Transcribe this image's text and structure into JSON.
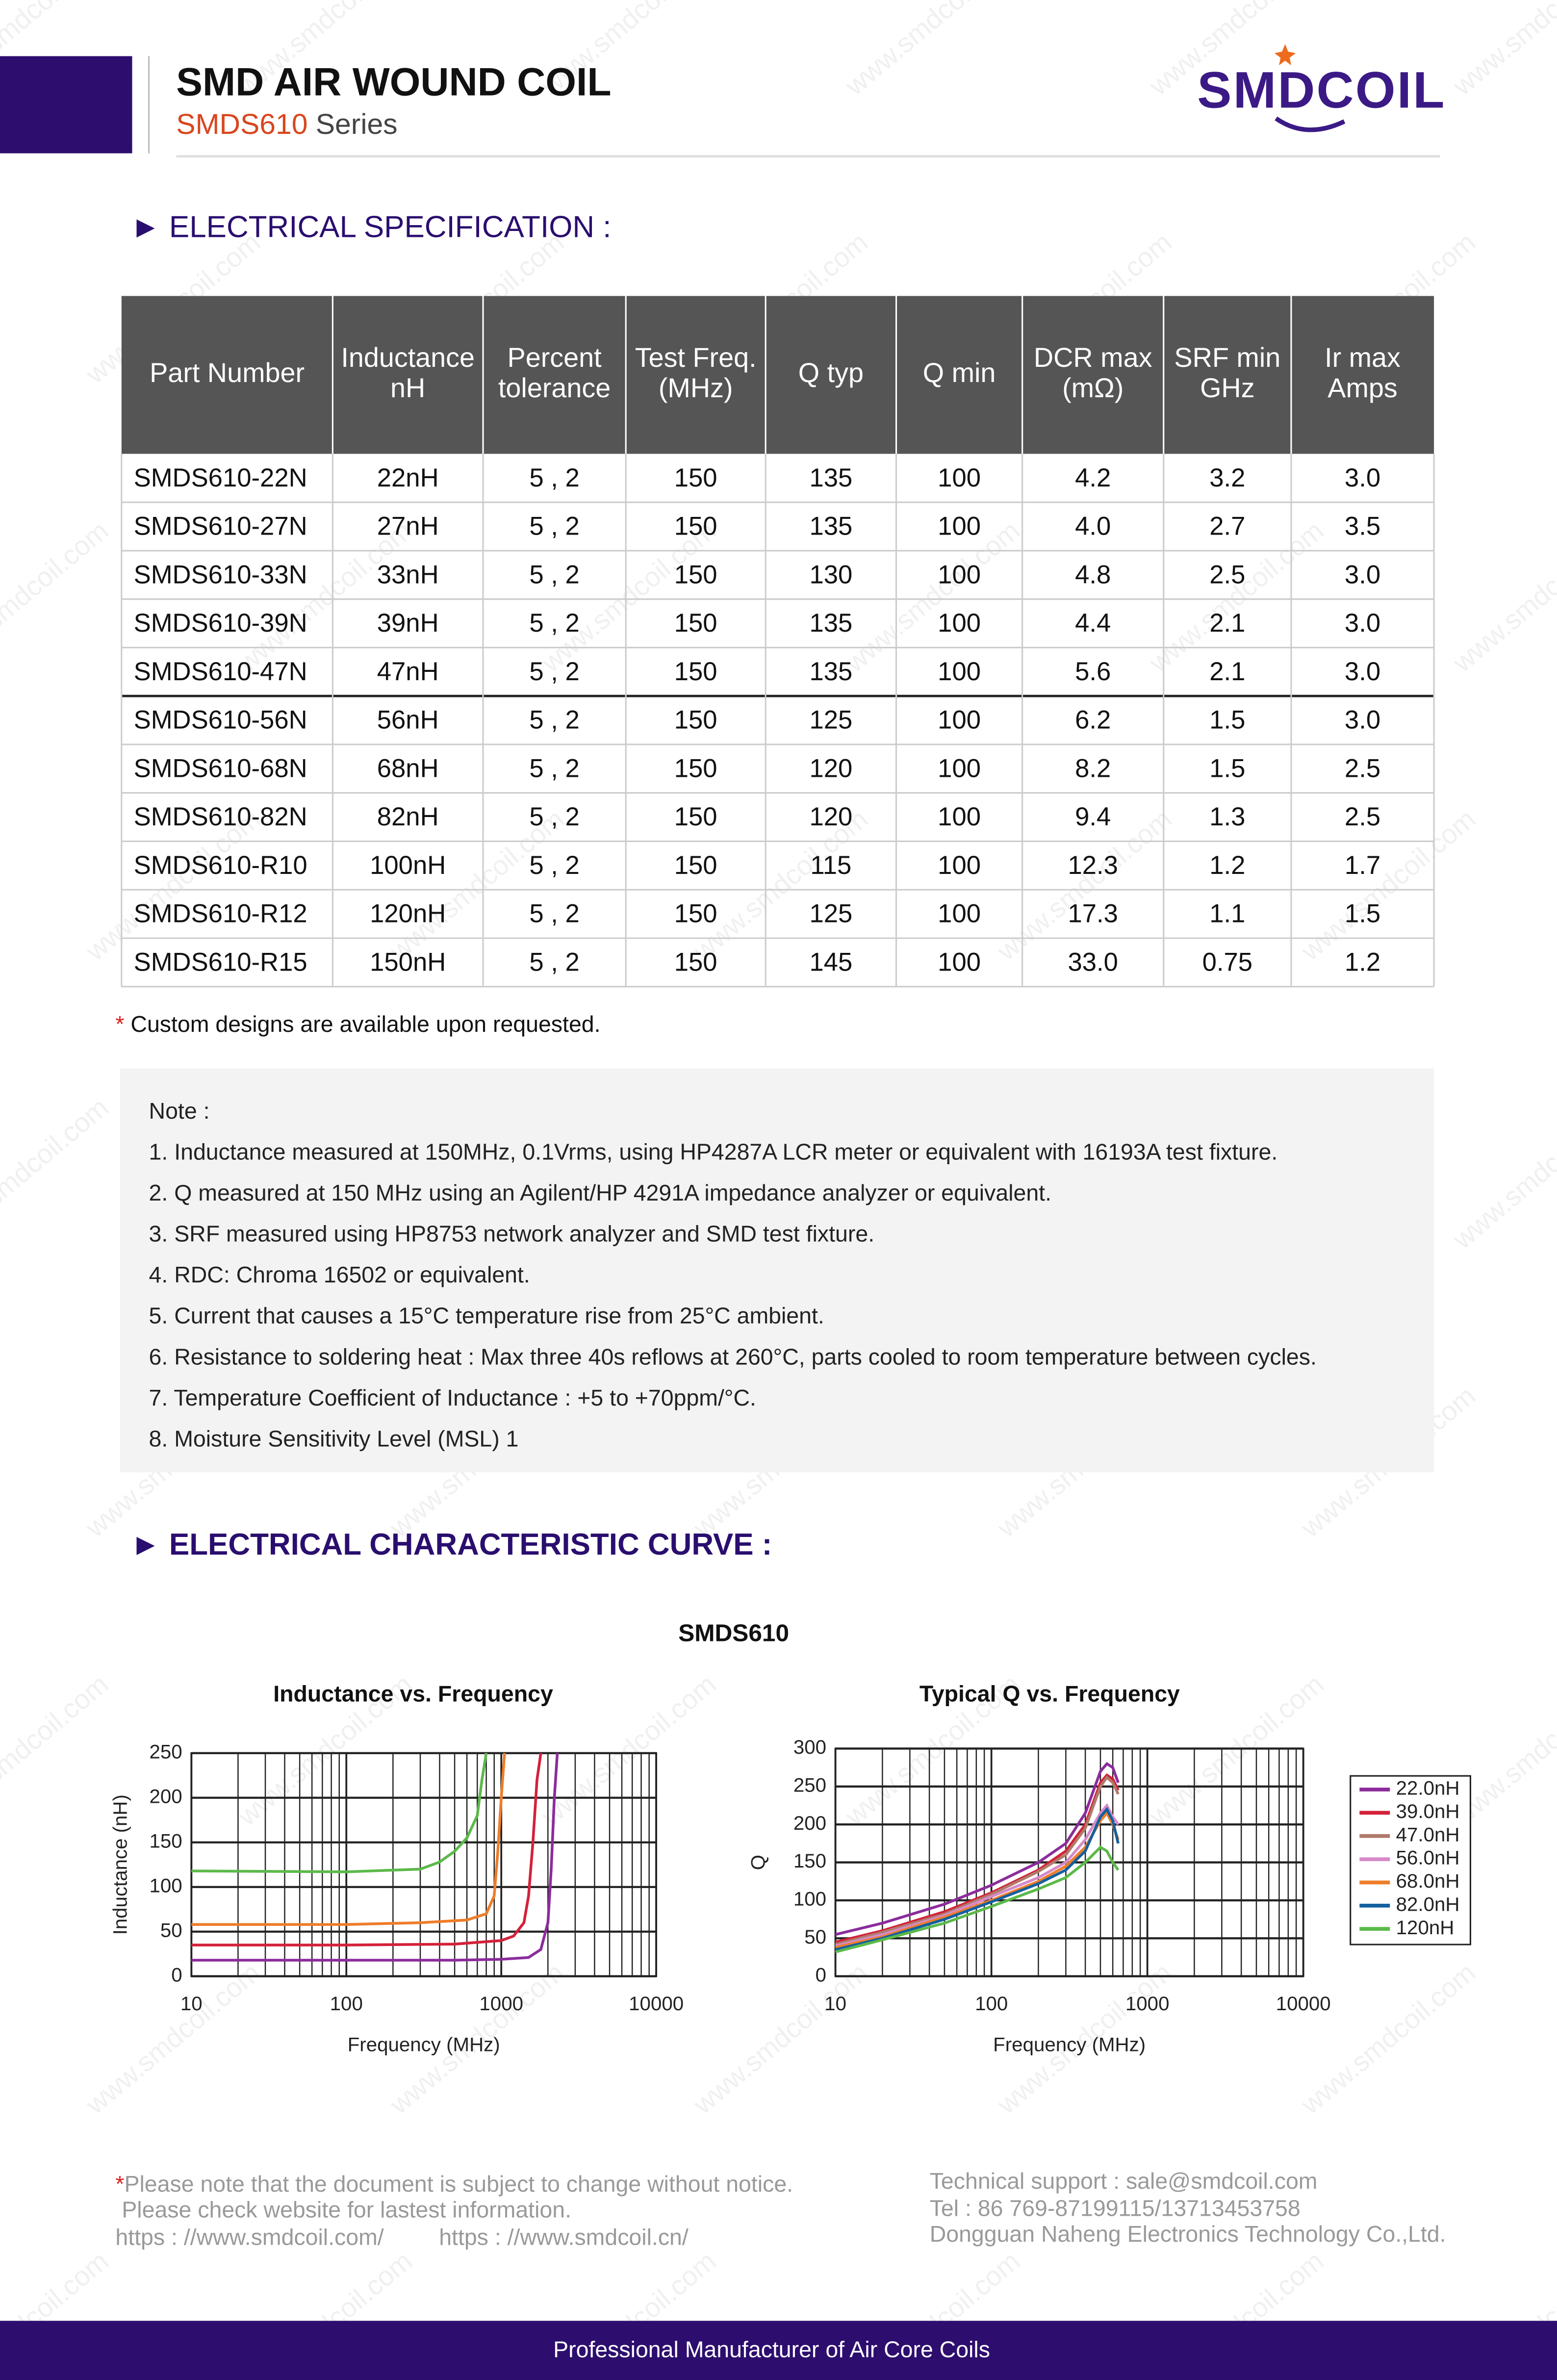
{
  "watermark": "www.smdcoil.com",
  "header": {
    "title": "SMD AIR WOUND COIL",
    "series_code": "SMDS610",
    "series_word": "Series",
    "logo": "SMDCOIL"
  },
  "spec_heading": "► ELECTRICAL SPECIFICATION :",
  "table": {
    "columns": [
      [
        "Part Number"
      ],
      [
        "Inductance",
        "nH"
      ],
      [
        "Percent",
        "tolerance"
      ],
      [
        "Test Freq.",
        "(MHz)"
      ],
      [
        "Q typ"
      ],
      [
        "Q min"
      ],
      [
        "DCR max",
        "(mΩ)"
      ],
      [
        "SRF min",
        "GHz"
      ],
      [
        "Ir max",
        "Amps"
      ]
    ],
    "rows": [
      [
        "SMDS610-22N",
        "22nH",
        "5 , 2",
        "150",
        "135",
        "100",
        "4.2",
        "3.2",
        "3.0"
      ],
      [
        "SMDS610-27N",
        "27nH",
        "5 , 2",
        "150",
        "135",
        "100",
        "4.0",
        "2.7",
        "3.5"
      ],
      [
        "SMDS610-33N",
        "33nH",
        "5 , 2",
        "150",
        "130",
        "100",
        "4.8",
        "2.5",
        "3.0"
      ],
      [
        "SMDS610-39N",
        "39nH",
        "5 , 2",
        "150",
        "135",
        "100",
        "4.4",
        "2.1",
        "3.0"
      ],
      [
        "SMDS610-47N",
        "47nH",
        "5 , 2",
        "150",
        "135",
        "100",
        "5.6",
        "2.1",
        "3.0"
      ],
      [
        "SMDS610-56N",
        "56nH",
        "5 , 2",
        "150",
        "125",
        "100",
        "6.2",
        "1.5",
        "3.0"
      ],
      [
        "SMDS610-68N",
        "68nH",
        "5 , 2",
        "150",
        "120",
        "100",
        "8.2",
        "1.5",
        "2.5"
      ],
      [
        "SMDS610-82N",
        "82nH",
        "5 , 2",
        "150",
        "120",
        "100",
        "9.4",
        "1.3",
        "2.5"
      ],
      [
        "SMDS610-R10",
        "100nH",
        "5 , 2",
        "150",
        "115",
        "100",
        "12.3",
        "1.2",
        "1.7"
      ],
      [
        "SMDS610-R12",
        "120nH",
        "5 , 2",
        "150",
        "125",
        "100",
        "17.3",
        "1.1",
        "1.5"
      ],
      [
        "SMDS610-R15",
        "150nH",
        "5 , 2",
        "150",
        "145",
        "100",
        "33.0",
        "0.75",
        "1.2"
      ]
    ]
  },
  "custom_note": {
    "mark": "*",
    "text": "Custom designs are available upon requested."
  },
  "notes": {
    "title": "Note :",
    "items": [
      "1. Inductance measured at 150MHz, 0.1Vrms,  using HP4287A LCR meter or equivalent with 16193A test fixture.",
      "2. Q measured at 150 MHz using an Agilent/HP 4291A impedance analyzer or equivalent.",
      "3. SRF measured using HP8753 network analyzer and SMD test fixture.",
      "4. RDC: Chroma 16502 or equivalent.",
      "5. Current that causes a 15°C temperature rise from 25°C ambient.",
      "6. Resistance to soldering heat : Max three 40s reflows at 260°C, parts cooled to room temperature between cycles.",
      "7. Temperature Coefficient of Inductance : +5 to +70ppm/°C.",
      "8. Moisture Sensitivity Level (MSL) 1"
    ]
  },
  "curve_heading": "► ELECTRICAL CHARACTERISTIC CURVE :",
  "curve_title": "SMDS610",
  "chart_data": [
    {
      "type": "line",
      "title": "Inductance vs. Frequency",
      "x_label": "Frequency (MHz)",
      "y_label": "Inductance (nH)",
      "x_scale": "log",
      "grid": true,
      "xlim": [
        10,
        10000
      ],
      "xticks": [
        10,
        100,
        1000,
        10000
      ],
      "ylim": [
        0,
        250
      ],
      "yticks": [
        0,
        50,
        100,
        150,
        200,
        250
      ],
      "series": [
        {
          "color": "#8b2c9c",
          "x": [
            10,
            100,
            500,
            1000,
            1500,
            1800,
            2000,
            2100,
            2200,
            2300
          ],
          "values": [
            18,
            18,
            18,
            19,
            21,
            30,
            60,
            120,
            200,
            250
          ]
        },
        {
          "color": "#d4213a",
          "x": [
            10,
            100,
            500,
            1000,
            1200,
            1400,
            1500,
            1600,
            1700,
            1800
          ],
          "values": [
            35,
            35,
            36,
            40,
            45,
            60,
            90,
            150,
            220,
            250
          ]
        },
        {
          "color": "#ee7d2a",
          "x": [
            10,
            100,
            300,
            600,
            800,
            900,
            950,
            1000,
            1050
          ],
          "values": [
            58,
            58,
            60,
            63,
            70,
            90,
            140,
            200,
            250
          ]
        },
        {
          "color": "#5cb94a",
          "x": [
            10,
            100,
            300,
            400,
            500,
            600,
            700,
            750,
            800
          ],
          "values": [
            118,
            117,
            120,
            128,
            140,
            155,
            180,
            220,
            250
          ]
        }
      ]
    },
    {
      "type": "line",
      "title": "Typical Q vs. Frequency",
      "x_label": "Frequency (MHz)",
      "y_label": "Q",
      "x_scale": "log",
      "grid": true,
      "legend": "right",
      "xlim": [
        10,
        10000
      ],
      "xticks": [
        10,
        100,
        1000,
        10000
      ],
      "ylim": [
        0,
        300
      ],
      "yticks": [
        0,
        50,
        100,
        150,
        200,
        250,
        300
      ],
      "series": [
        {
          "name": "22.0nH",
          "color": "#8b2c9c",
          "x": [
            10,
            20,
            50,
            100,
            200,
            300,
            400,
            500,
            550,
            600,
            650
          ],
          "values": [
            55,
            70,
            95,
            120,
            150,
            175,
            215,
            270,
            280,
            275,
            255
          ]
        },
        {
          "name": "39.0nH",
          "color": "#d4213a",
          "x": [
            10,
            20,
            50,
            100,
            200,
            300,
            400,
            500,
            550,
            600,
            650
          ],
          "values": [
            45,
            60,
            85,
            110,
            140,
            165,
            200,
            255,
            265,
            260,
            245
          ]
        },
        {
          "name": "47.0nH",
          "color": "#b07a6a",
          "x": [
            10,
            20,
            50,
            100,
            200,
            300,
            400,
            500,
            550,
            600,
            650
          ],
          "values": [
            42,
            58,
            82,
            108,
            138,
            160,
            195,
            250,
            262,
            255,
            240
          ]
        },
        {
          "name": "56.0nH",
          "color": "#d58ac8",
          "x": [
            10,
            20,
            50,
            100,
            200,
            300,
            400,
            500,
            550,
            600,
            650
          ],
          "values": [
            40,
            55,
            80,
            105,
            130,
            150,
            180,
            215,
            225,
            210,
            200
          ]
        },
        {
          "name": "68.0nH",
          "color": "#ee7d2a",
          "x": [
            10,
            20,
            50,
            100,
            200,
            300,
            400,
            500,
            550,
            600,
            650
          ],
          "values": [
            38,
            52,
            78,
            100,
            125,
            145,
            170,
            205,
            215,
            200,
            180
          ]
        },
        {
          "name": "82.0nH",
          "color": "#12609e",
          "x": [
            10,
            20,
            50,
            100,
            200,
            300,
            400,
            500,
            550,
            600,
            650
          ],
          "values": [
            35,
            50,
            75,
            98,
            122,
            140,
            165,
            210,
            220,
            205,
            175
          ]
        },
        {
          "name": "120nH",
          "color": "#5cb94a",
          "x": [
            10,
            20,
            50,
            100,
            200,
            300,
            400,
            500,
            550,
            600,
            650
          ],
          "values": [
            32,
            48,
            70,
            92,
            115,
            130,
            150,
            170,
            165,
            150,
            140
          ]
        }
      ]
    }
  ],
  "footer": {
    "mark": "*",
    "notice": "Please note that the document is subject to change without notice.",
    "check": " Please check website for lastest information.",
    "url_com": "https : //www.smdcoil.com/",
    "url_cn": "https : //www.smdcoil.cn/",
    "support": "Technical support : sale@smdcoil.com",
    "tel": "Tel : 86 769-87199115/13713453758",
    "company": "Dongguan Naheng Electronics Technology Co.,Ltd.",
    "banner": "Professional Manufacturer of Air Core Coils"
  }
}
